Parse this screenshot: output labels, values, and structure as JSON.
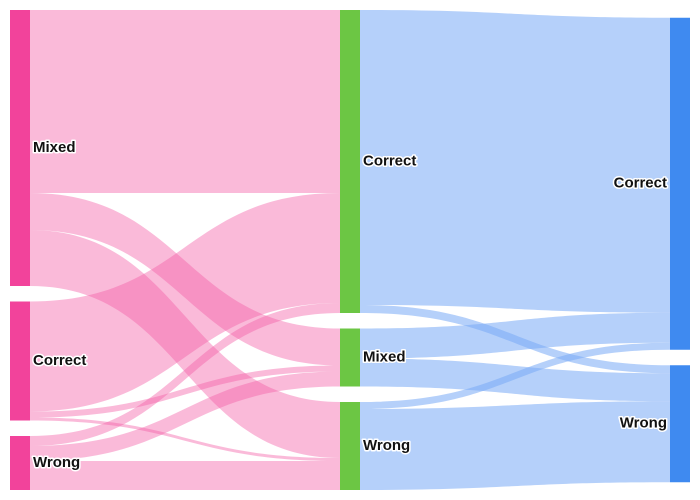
{
  "sankey": {
    "nodes": [
      {
        "label": "Mixed",
        "column": 0,
        "color": "#f2439b"
      },
      {
        "label": "Correct",
        "column": 0,
        "color": "#f2439b"
      },
      {
        "label": "Wrong",
        "column": 0,
        "color": "#f2439b"
      },
      {
        "label": "Correct",
        "column": 1,
        "color": "#6cc644"
      },
      {
        "label": "Mixed",
        "column": 1,
        "color": "#6cc644"
      },
      {
        "label": "Wrong",
        "column": 1,
        "color": "#6cc644"
      },
      {
        "label": "Correct",
        "column": 2,
        "color": "#3f8af0"
      },
      {
        "label": "Wrong",
        "column": 2,
        "color": "#3f8af0"
      }
    ],
    "links": [
      {
        "source": 0,
        "target": 3,
        "value": 183,
        "color": "rgba(244,90,165,0.42)"
      },
      {
        "source": 0,
        "target": 4,
        "value": 37,
        "color": "rgba(244,90,165,0.42)"
      },
      {
        "source": 0,
        "target": 5,
        "value": 56,
        "color": "rgba(244,90,165,0.42)"
      },
      {
        "source": 1,
        "target": 3,
        "value": 110,
        "color": "rgba(244,90,165,0.42)"
      },
      {
        "source": 1,
        "target": 4,
        "value": 6,
        "color": "rgba(244,90,165,0.42)"
      },
      {
        "source": 1,
        "target": 5,
        "value": 3,
        "color": "rgba(244,90,165,0.42)"
      },
      {
        "source": 2,
        "target": 3,
        "value": 10,
        "color": "rgba(244,90,165,0.42)"
      },
      {
        "source": 2,
        "target": 4,
        "value": 15,
        "color": "rgba(244,90,165,0.42)"
      },
      {
        "source": 2,
        "target": 5,
        "value": 29,
        "color": "rgba(244,90,165,0.42)"
      },
      {
        "source": 3,
        "target": 6,
        "value": 295,
        "color": "rgba(120,170,245,0.55)"
      },
      {
        "source": 3,
        "target": 7,
        "value": 8,
        "color": "rgba(120,170,245,0.55)"
      },
      {
        "source": 4,
        "target": 6,
        "value": 30,
        "color": "rgba(120,170,245,0.55)"
      },
      {
        "source": 4,
        "target": 7,
        "value": 28,
        "color": "rgba(120,170,245,0.55)"
      },
      {
        "source": 5,
        "target": 6,
        "value": 7,
        "color": "rgba(120,170,245,0.55)"
      },
      {
        "source": 5,
        "target": 7,
        "value": 81,
        "color": "rgba(120,170,245,0.55)"
      }
    ]
  }
}
